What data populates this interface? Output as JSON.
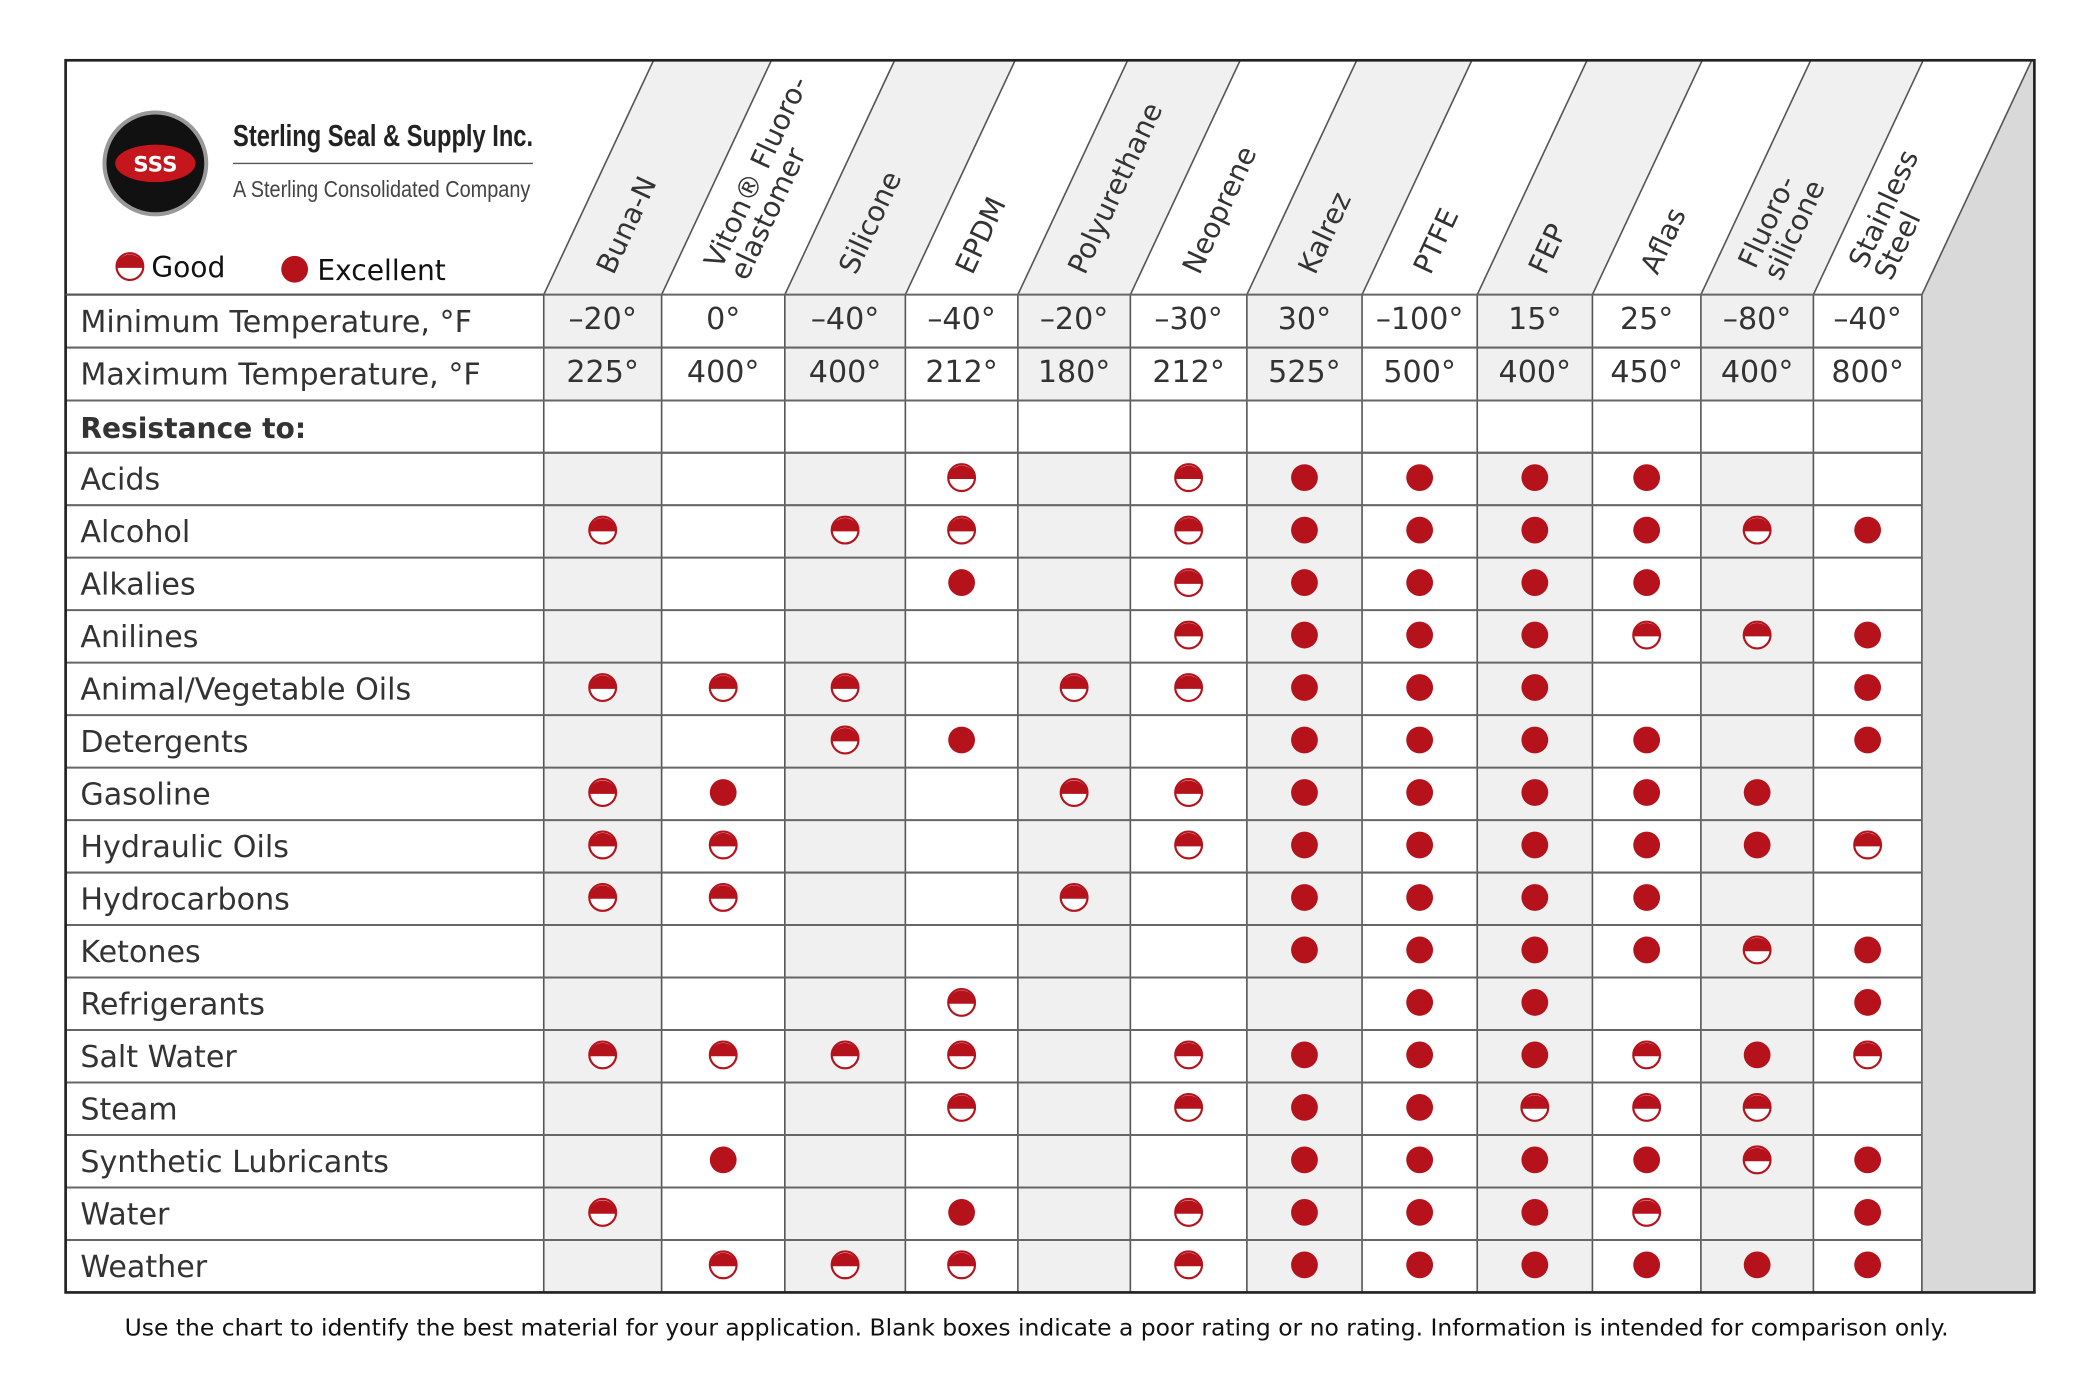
{
  "header": {
    "logo": "SSS",
    "company": "Sterling Seal & Supply Inc.",
    "tagline": "A Sterling Consolidated Company"
  },
  "legend": {
    "good": "Good",
    "excellent": "Excellent"
  },
  "table": {
    "columns": [
      [
        "Buna-N"
      ],
      [
        "Viton® Fluoro-",
        "elastomer"
      ],
      [
        "Silicone"
      ],
      [
        "EPDM"
      ],
      [
        "Polyurethane"
      ],
      [
        "Neoprene"
      ],
      [
        "Kalrez"
      ],
      [
        "PTFE"
      ],
      [
        "FEP"
      ],
      [
        "Aflas"
      ],
      [
        "Fluoro-",
        "silicone"
      ],
      [
        "Stainless",
        "Steel"
      ]
    ],
    "temperature_rows": [
      {
        "label": "Minimum Temperature, °F",
        "values": [
          "–20°",
          "0°",
          "–40°",
          "–40°",
          "–20°",
          "–30°",
          "30°",
          "–100°",
          "15°",
          "25°",
          "–80°",
          "–40°"
        ]
      },
      {
        "label": "Maximum Temperature, °F",
        "values": [
          "225°",
          "400°",
          "400°",
          "212°",
          "180°",
          "212°",
          "525°",
          "500°",
          "400°",
          "450°",
          "400°",
          "800°"
        ]
      }
    ],
    "section": "Resistance to:",
    "rows": [
      {
        "name": "Acids",
        "ratings": [
          null,
          null,
          null,
          "Good",
          null,
          "Good",
          "Excellent",
          "Excellent",
          "Excellent",
          "Excellent",
          null,
          null
        ]
      },
      {
        "name": "Alcohol",
        "ratings": [
          "Good",
          null,
          "Good",
          "Good",
          null,
          "Good",
          "Excellent",
          "Excellent",
          "Excellent",
          "Excellent",
          "Good",
          "Excellent"
        ]
      },
      {
        "name": "Alkalies",
        "ratings": [
          null,
          null,
          null,
          "Excellent",
          null,
          "Good",
          "Excellent",
          "Excellent",
          "Excellent",
          "Excellent",
          null,
          null
        ]
      },
      {
        "name": "Anilines",
        "ratings": [
          null,
          null,
          null,
          null,
          null,
          "Good",
          "Excellent",
          "Excellent",
          "Excellent",
          "Good",
          "Good",
          "Excellent"
        ]
      },
      {
        "name": "Animal/Vegetable Oils",
        "ratings": [
          "Good",
          "Good",
          "Good",
          null,
          "Good",
          "Good",
          "Excellent",
          "Excellent",
          "Excellent",
          null,
          null,
          "Excellent"
        ]
      },
      {
        "name": "Detergents",
        "ratings": [
          null,
          null,
          "Good",
          "Excellent",
          null,
          null,
          "Excellent",
          "Excellent",
          "Excellent",
          "Excellent",
          null,
          "Excellent"
        ]
      },
      {
        "name": "Gasoline",
        "ratings": [
          "Good",
          "Excellent",
          null,
          null,
          "Good",
          "Good",
          "Excellent",
          "Excellent",
          "Excellent",
          "Excellent",
          "Excellent",
          null
        ]
      },
      {
        "name": "Hydraulic Oils",
        "ratings": [
          "Good",
          "Good",
          null,
          null,
          null,
          "Good",
          "Excellent",
          "Excellent",
          "Excellent",
          "Excellent",
          "Excellent",
          "Good"
        ]
      },
      {
        "name": "Hydrocarbons",
        "ratings": [
          "Good",
          "Good",
          null,
          null,
          "Good",
          null,
          "Excellent",
          "Excellent",
          "Excellent",
          "Excellent",
          null,
          null
        ]
      },
      {
        "name": "Ketones",
        "ratings": [
          null,
          null,
          null,
          null,
          null,
          null,
          "Excellent",
          "Excellent",
          "Excellent",
          "Excellent",
          "Good",
          "Excellent"
        ]
      },
      {
        "name": "Refrigerants",
        "ratings": [
          null,
          null,
          null,
          "Good",
          null,
          null,
          null,
          "Excellent",
          "Excellent",
          null,
          null,
          "Excellent"
        ]
      },
      {
        "name": "Salt Water",
        "ratings": [
          "Good",
          "Good",
          "Good",
          "Good",
          null,
          "Good",
          "Excellent",
          "Excellent",
          "Excellent",
          "Good",
          "Excellent",
          "Good"
        ]
      },
      {
        "name": "Steam",
        "ratings": [
          null,
          null,
          null,
          "Good",
          null,
          "Good",
          "Excellent",
          "Excellent",
          "Good",
          "Good",
          "Good",
          null
        ]
      },
      {
        "name": "Synthetic Lubricants",
        "ratings": [
          null,
          "Excellent",
          null,
          null,
          null,
          null,
          "Excellent",
          "Excellent",
          "Excellent",
          "Excellent",
          "Good",
          "Excellent"
        ]
      },
      {
        "name": "Water",
        "ratings": [
          "Good",
          null,
          null,
          "Excellent",
          null,
          "Good",
          "Excellent",
          "Excellent",
          "Excellent",
          "Good",
          null,
          "Excellent"
        ]
      },
      {
        "name": "Weather",
        "ratings": [
          null,
          "Good",
          "Good",
          "Good",
          null,
          "Good",
          "Excellent",
          "Excellent",
          "Excellent",
          "Excellent",
          "Excellent",
          "Excellent"
        ]
      }
    ]
  },
  "footer": "Use the chart to identify the best material for your application.   Blank boxes indicate a poor rating or no rating.   Information is intended for comparison only."
}
